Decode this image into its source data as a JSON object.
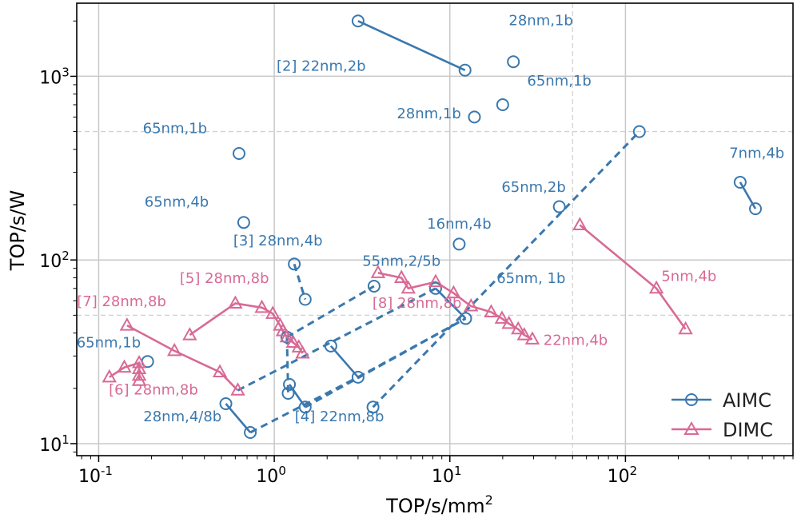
{
  "chart_data": {
    "type": "scatter",
    "xlabel": "TOP/s/mm",
    "xlabel_sup": "2",
    "ylabel": "TOP/s/W",
    "xscale": "log",
    "yscale": "log",
    "xlim": [
      0.075,
      900
    ],
    "ylim": [
      8.6,
      2500
    ],
    "x_ticks": [
      {
        "value": 0.1,
        "base": "10",
        "exp": "-1"
      },
      {
        "value": 1,
        "base": "10",
        "exp": "0"
      },
      {
        "value": 10,
        "base": "10",
        "exp": "1"
      },
      {
        "value": 100,
        "base": "10",
        "exp": "2"
      }
    ],
    "y_ticks": [
      {
        "value": 10,
        "base": "10",
        "exp": "1"
      },
      {
        "value": 100,
        "base": "10",
        "exp": "2"
      },
      {
        "value": 1000,
        "base": "10",
        "exp": "3"
      }
    ],
    "dashed_grid_y": [
      500,
      50
    ],
    "dashed_grid_x": [
      50
    ],
    "grid": true,
    "legend_position": "bottom-right",
    "series": [
      {
        "name": "AIMC",
        "marker": "circle",
        "color": "#3a78ae"
      },
      {
        "name": "DIMC",
        "marker": "triangle",
        "color": "#d86a95"
      }
    ],
    "aimc_points": [
      {
        "x": 3.0,
        "y": 2000
      },
      {
        "x": 12.2,
        "y": 1080
      },
      {
        "x": 23.0,
        "y": 1200
      },
      {
        "x": 20.0,
        "y": 700
      },
      {
        "x": 13.8,
        "y": 600
      },
      {
        "x": 0.63,
        "y": 380
      },
      {
        "x": 0.67,
        "y": 160
      },
      {
        "x": 1.3,
        "y": 95
      },
      {
        "x": 1.5,
        "y": 61
      },
      {
        "x": 11.3,
        "y": 122
      },
      {
        "x": 42,
        "y": 195
      },
      {
        "x": 120,
        "y": 500
      },
      {
        "x": 450,
        "y": 265
      },
      {
        "x": 550,
        "y": 190
      },
      {
        "x": 3.7,
        "y": 72
      },
      {
        "x": 8.3,
        "y": 70
      },
      {
        "x": 12.3,
        "y": 48
      },
      {
        "x": 1.18,
        "y": 38
      },
      {
        "x": 2.1,
        "y": 34
      },
      {
        "x": 3.0,
        "y": 23
      },
      {
        "x": 1.22,
        "y": 21
      },
      {
        "x": 1.2,
        "y": 18.8
      },
      {
        "x": 1.5,
        "y": 15.8
      },
      {
        "x": 0.53,
        "y": 16.5
      },
      {
        "x": 0.73,
        "y": 11.5
      },
      {
        "x": 3.65,
        "y": 15.8
      },
      {
        "x": 0.19,
        "y": 28
      }
    ],
    "aimc_solid_lines": [
      [
        [
          3.0,
          2000
        ],
        [
          12.2,
          1080
        ]
      ],
      [
        [
          450,
          265
        ],
        [
          550,
          190
        ]
      ],
      [
        [
          2.1,
          34
        ],
        [
          3.0,
          23
        ]
      ],
      [
        [
          1.22,
          21
        ],
        [
          1.5,
          15.8
        ]
      ],
      [
        [
          0.53,
          16.5
        ],
        [
          0.73,
          11.5
        ]
      ],
      [
        [
          8.3,
          70
        ],
        [
          12.3,
          48
        ]
      ]
    ],
    "aimc_dashed_lines": [
      [
        [
          1.3,
          95
        ],
        [
          1.5,
          61
        ]
      ],
      [
        [
          3.65,
          15.8
        ],
        [
          120,
          500
        ]
      ],
      [
        [
          1.18,
          38
        ],
        [
          3.7,
          72
        ]
      ],
      [
        [
          0.62,
          19.5
        ],
        [
          8.3,
          70
        ]
      ],
      [
        [
          1.5,
          15.8
        ],
        [
          12.3,
          48
        ]
      ],
      [
        [
          0.73,
          11.5
        ],
        [
          3.0,
          23
        ]
      ],
      [
        [
          3.0,
          23
        ],
        [
          12.3,
          48
        ]
      ],
      [
        [
          1.18,
          38
        ],
        [
          1.2,
          18.8
        ]
      ]
    ],
    "dimc_lines": [
      [
        [
          0.115,
          23
        ],
        [
          0.14,
          26
        ],
        [
          0.17,
          27.5
        ],
        [
          0.17,
          25.5
        ],
        [
          0.17,
          23.5
        ],
        [
          0.17,
          22
        ]
      ],
      [
        [
          0.145,
          44
        ],
        [
          0.27,
          32
        ],
        [
          0.49,
          24.5
        ],
        [
          0.62,
          19.5
        ]
      ],
      [
        [
          0.33,
          39
        ],
        [
          0.6,
          58
        ],
        [
          0.85,
          55
        ],
        [
          0.98,
          51
        ],
        [
          1.08,
          44
        ],
        [
          1.12,
          41
        ],
        [
          1.18,
          38
        ],
        [
          1.28,
          35.5
        ],
        [
          1.38,
          33.5
        ],
        [
          1.45,
          31
        ]
      ],
      [
        [
          3.9,
          85
        ],
        [
          5.3,
          80
        ],
        [
          5.8,
          70
        ],
        [
          8.3,
          76
        ],
        [
          10.5,
          66
        ],
        [
          13.2,
          56
        ],
        [
          17.2,
          52
        ],
        [
          19.8,
          48
        ],
        [
          21.7,
          45
        ],
        [
          24.5,
          42
        ],
        [
          26.5,
          39
        ],
        [
          29.5,
          37
        ]
      ],
      [
        [
          55,
          155
        ],
        [
          150,
          70
        ],
        [
          220,
          42
        ]
      ]
    ],
    "annotations": [
      {
        "text": "[2] 22nm,2b",
        "x": 1.85,
        "y": 1070,
        "color": "#3a78ae"
      },
      {
        "text": "28nm,1b",
        "x": 33,
        "y": 1900,
        "color": "#3a78ae"
      },
      {
        "text": "65nm,1b",
        "x": 42,
        "y": 890,
        "color": "#3a78ae"
      },
      {
        "text": "28nm,1b",
        "x": 7.6,
        "y": 590,
        "color": "#3a78ae"
      },
      {
        "text": "65nm,1b",
        "x": 0.272,
        "y": 490,
        "color": "#3a78ae"
      },
      {
        "text": "7nm,4b",
        "x": 560,
        "y": 360,
        "color": "#3a78ae"
      },
      {
        "text": "65nm,2b",
        "x": 30,
        "y": 235,
        "color": "#3a78ae"
      },
      {
        "text": "65nm,4b",
        "x": 0.278,
        "y": 195,
        "color": "#3a78ae"
      },
      {
        "text": "16nm,4b",
        "x": 11.3,
        "y": 148,
        "color": "#3a78ae"
      },
      {
        "text": "[3] 28nm,4b",
        "x": 1.05,
        "y": 120,
        "color": "#3a78ae"
      },
      {
        "text": "55nm,2/5b",
        "x": 5.3,
        "y": 93,
        "color": "#3a78ae"
      },
      {
        "text": "65nm, 1b",
        "x": 29,
        "y": 75,
        "color": "#3a78ae"
      },
      {
        "text": "65nm,1b",
        "x": 0.114,
        "y": 33.5,
        "color": "#3a78ae"
      },
      {
        "text": "28nm,4/8b",
        "x": 0.3,
        "y": 13.2,
        "color": "#3a78ae"
      },
      {
        "text": "[4] 22nm,8b",
        "x": 2.35,
        "y": 13.2,
        "color": "#3a78ae"
      },
      {
        "text": "[5] 28nm,8b",
        "x": 0.52,
        "y": 75,
        "color": "#d86a95"
      },
      {
        "text": "[7] 28nm,8b",
        "x": 0.135,
        "y": 56,
        "color": "#d86a95"
      },
      {
        "text": "[8] 28nm,8b",
        "x": 6.5,
        "y": 55,
        "color": "#d86a95"
      },
      {
        "text": "5nm,4b",
        "x": 230,
        "y": 77,
        "color": "#d86a95"
      },
      {
        "text": "22nm,4b",
        "x": 52,
        "y": 34.5,
        "color": "#d86a95"
      },
      {
        "text": "[6] 28nm,8b",
        "x": 0.205,
        "y": 18.5,
        "color": "#d86a95"
      }
    ]
  }
}
